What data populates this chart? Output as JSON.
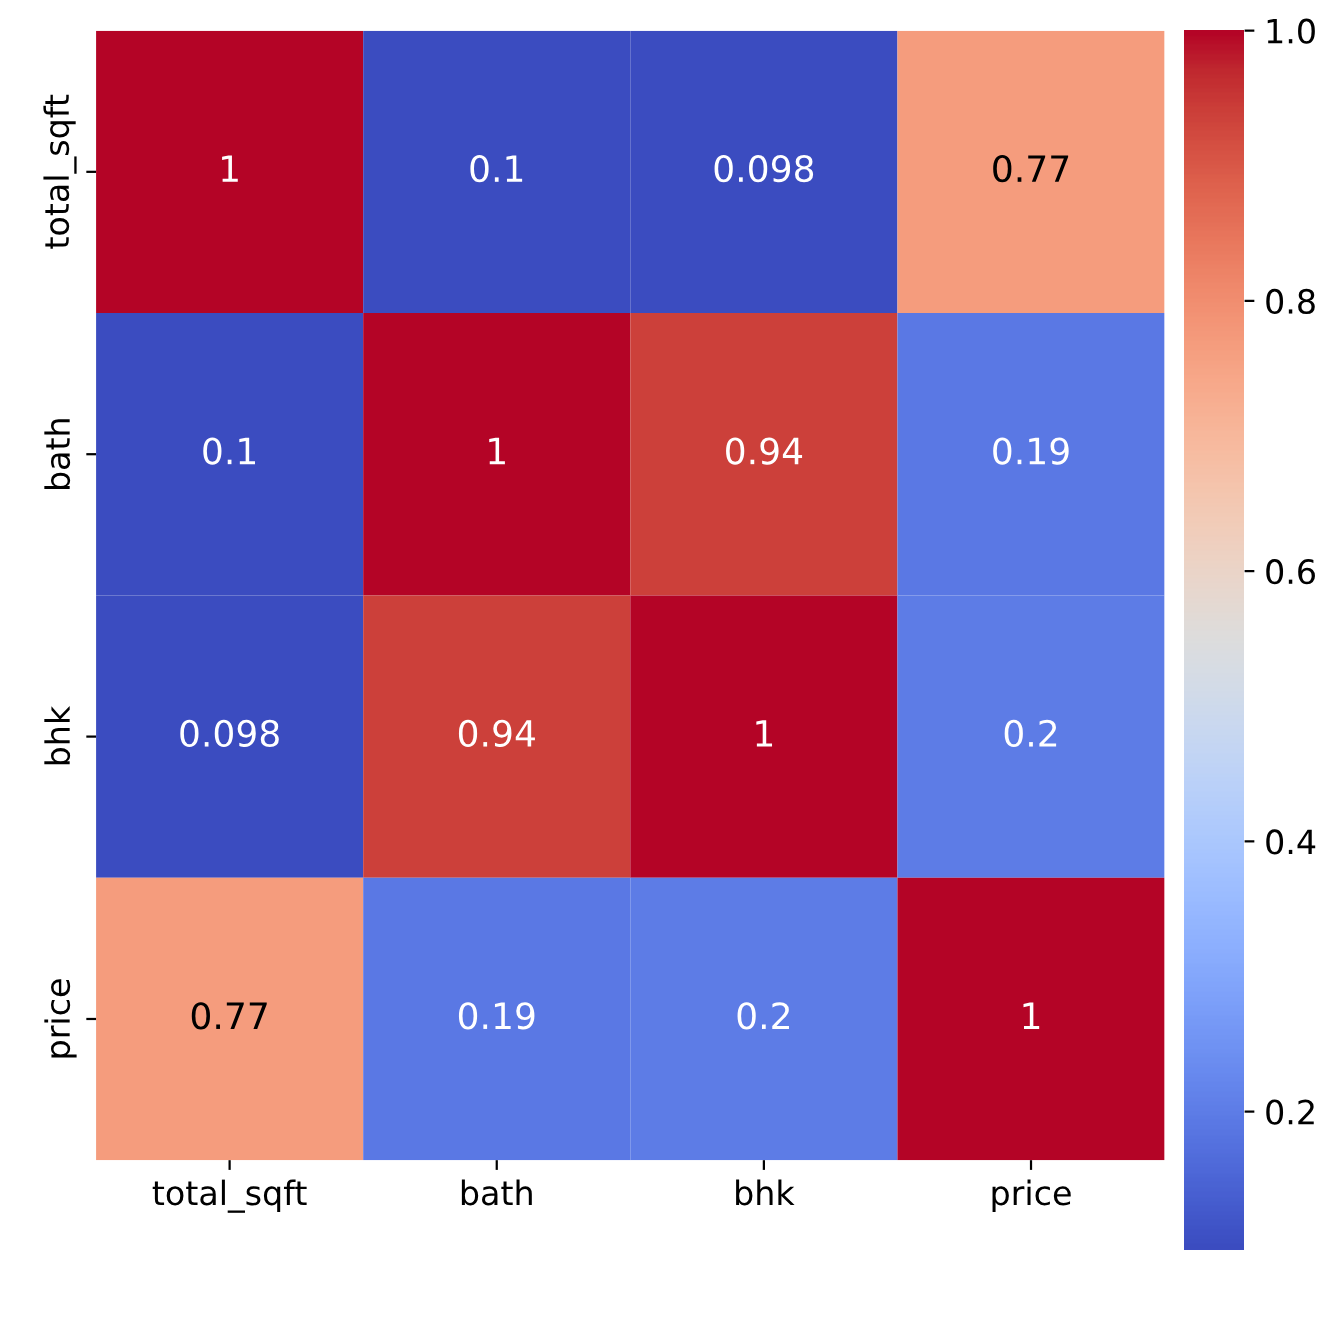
{
  "chart_data": {
    "type": "heatmap",
    "categories": [
      "total_sqft",
      "bath",
      "bhk",
      "price"
    ],
    "y_categories": [
      "total_sqft",
      "bath",
      "bhk",
      "price"
    ],
    "cells": [
      [
        1,
        0.1,
        0.098,
        0.77
      ],
      [
        0.1,
        1,
        0.94,
        0.19
      ],
      [
        0.098,
        0.94,
        1,
        0.2
      ],
      [
        0.77,
        0.19,
        0.2,
        1
      ]
    ],
    "clim": [
      0.098,
      1.0
    ],
    "cticks": [
      {
        "value": 0.2,
        "label": "0.2"
      },
      {
        "value": 0.4,
        "label": "0.4"
      },
      {
        "value": 0.6,
        "label": "0.6"
      },
      {
        "value": 0.8,
        "label": "0.8"
      },
      {
        "value": 1.0,
        "label": "1.0"
      }
    ],
    "data_labels": true
  }
}
